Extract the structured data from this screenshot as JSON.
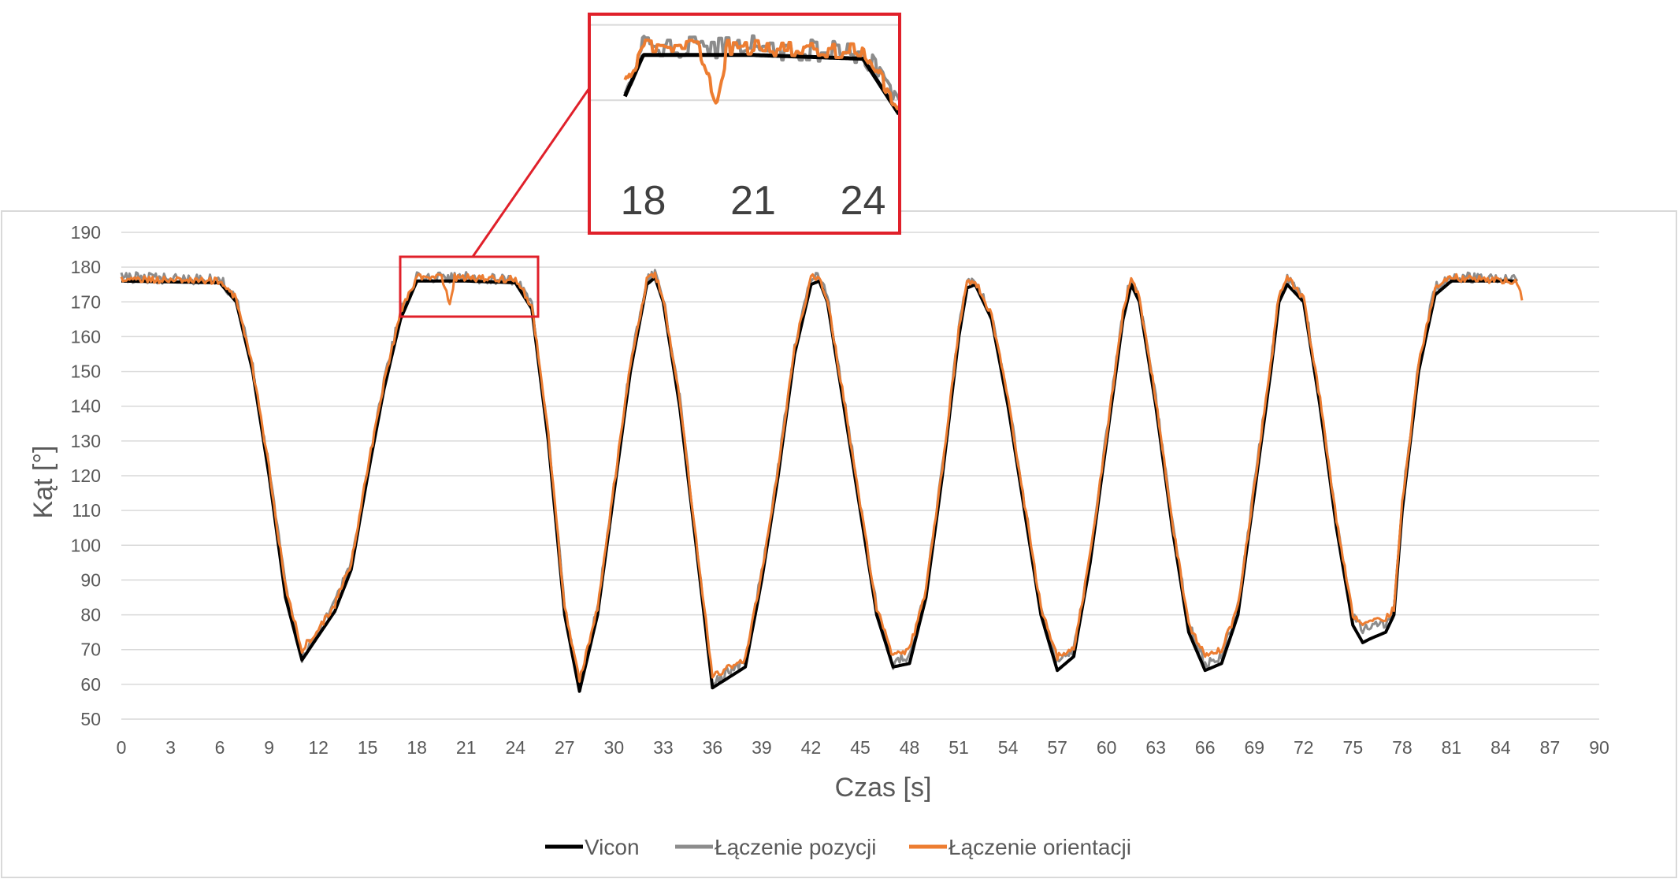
{
  "chart_data": {
    "type": "line",
    "title": "",
    "xlabel": "Czas [s]",
    "ylabel": "Kąt [°]",
    "xlim": [
      0,
      90
    ],
    "ylim": [
      50,
      190
    ],
    "x_ticks": [
      "0",
      "3",
      "6",
      "9",
      "12",
      "15",
      "18",
      "21",
      "24",
      "27",
      "30",
      "33",
      "36",
      "39",
      "42",
      "45",
      "48",
      "51",
      "54",
      "57",
      "60",
      "63",
      "66",
      "69",
      "72",
      "75",
      "78",
      "81",
      "84",
      "87",
      "90"
    ],
    "y_ticks": [
      "50",
      "60",
      "70",
      "80",
      "90",
      "100",
      "110",
      "120",
      "130",
      "140",
      "150",
      "160",
      "170",
      "180",
      "190"
    ],
    "grid": "horizontal",
    "legend_position": "bottom",
    "series": [
      {
        "name": "Vicon",
        "color": "#000000",
        "points": [
          [
            0,
            176
          ],
          [
            6,
            175.5
          ],
          [
            7,
            170
          ],
          [
            8,
            150
          ],
          [
            9,
            120
          ],
          [
            10,
            85
          ],
          [
            11,
            67
          ],
          [
            12,
            74
          ],
          [
            13,
            81
          ],
          [
            14,
            93
          ],
          [
            15,
            120
          ],
          [
            16,
            145
          ],
          [
            17,
            165
          ],
          [
            18,
            176
          ],
          [
            21,
            176
          ],
          [
            24,
            175.5
          ],
          [
            25,
            168
          ],
          [
            26,
            130
          ],
          [
            27,
            80
          ],
          [
            27.9,
            58
          ],
          [
            29,
            80
          ],
          [
            30,
            115
          ],
          [
            31,
            150
          ],
          [
            32,
            175
          ],
          [
            32.5,
            177
          ],
          [
            33,
            170
          ],
          [
            34,
            140
          ],
          [
            35,
            100
          ],
          [
            36,
            59
          ],
          [
            37,
            62
          ],
          [
            38,
            65
          ],
          [
            39,
            90
          ],
          [
            40,
            120
          ],
          [
            41,
            155
          ],
          [
            42,
            175
          ],
          [
            42.5,
            176
          ],
          [
            43,
            170
          ],
          [
            44,
            140
          ],
          [
            45,
            110
          ],
          [
            46,
            80
          ],
          [
            47,
            65
          ],
          [
            48,
            66
          ],
          [
            49,
            85
          ],
          [
            50,
            120
          ],
          [
            51,
            160
          ],
          [
            51.5,
            174
          ],
          [
            52,
            175
          ],
          [
            53,
            165
          ],
          [
            54,
            140
          ],
          [
            55,
            110
          ],
          [
            56,
            80
          ],
          [
            57,
            64
          ],
          [
            58,
            68
          ],
          [
            59,
            95
          ],
          [
            60,
            130
          ],
          [
            61,
            165
          ],
          [
            61.5,
            175
          ],
          [
            62,
            170
          ],
          [
            63,
            140
          ],
          [
            64,
            105
          ],
          [
            65,
            75
          ],
          [
            66,
            64
          ],
          [
            67,
            66
          ],
          [
            68,
            80
          ],
          [
            69,
            115
          ],
          [
            70,
            150
          ],
          [
            70.5,
            170
          ],
          [
            71,
            175
          ],
          [
            72,
            170
          ],
          [
            73,
            140
          ],
          [
            74,
            105
          ],
          [
            75,
            77
          ],
          [
            75.6,
            72
          ],
          [
            76,
            73
          ],
          [
            77,
            75
          ],
          [
            77.5,
            80
          ],
          [
            78,
            110
          ],
          [
            79,
            150
          ],
          [
            80,
            172
          ],
          [
            81,
            176
          ],
          [
            85,
            176
          ]
        ]
      },
      {
        "name": "Łączenie pozycji",
        "color": "#8c8c8c",
        "points": [
          [
            0,
            177
          ],
          [
            6,
            176.5
          ],
          [
            7,
            171
          ],
          [
            8,
            151
          ],
          [
            9,
            122
          ],
          [
            10,
            88
          ],
          [
            11,
            68
          ],
          [
            12,
            75
          ],
          [
            13,
            83
          ],
          [
            14,
            95
          ],
          [
            15,
            122
          ],
          [
            16,
            147
          ],
          [
            17,
            167
          ],
          [
            18,
            177
          ],
          [
            21,
            177
          ],
          [
            24,
            176.5
          ],
          [
            25,
            169
          ],
          [
            26,
            132
          ],
          [
            27,
            82
          ],
          [
            27.9,
            59
          ],
          [
            29,
            82
          ],
          [
            30,
            117
          ],
          [
            31,
            152
          ],
          [
            32,
            176
          ],
          [
            32.5,
            178
          ],
          [
            33,
            171
          ],
          [
            34,
            142
          ],
          [
            35,
            102
          ],
          [
            36,
            60
          ],
          [
            37,
            64
          ],
          [
            38,
            67
          ],
          [
            39,
            92
          ],
          [
            40,
            122
          ],
          [
            41,
            157
          ],
          [
            42,
            177
          ],
          [
            42.5,
            177
          ],
          [
            43,
            171
          ],
          [
            44,
            142
          ],
          [
            45,
            112
          ],
          [
            46,
            82
          ],
          [
            47,
            66
          ],
          [
            48,
            68
          ],
          [
            49,
            87
          ],
          [
            50,
            122
          ],
          [
            51,
            162
          ],
          [
            51.5,
            176
          ],
          [
            52,
            176
          ],
          [
            53,
            166
          ],
          [
            54,
            142
          ],
          [
            55,
            112
          ],
          [
            56,
            82
          ],
          [
            57,
            66
          ],
          [
            58,
            70
          ],
          [
            59,
            97
          ],
          [
            60,
            132
          ],
          [
            61,
            167
          ],
          [
            61.5,
            177
          ],
          [
            62,
            171
          ],
          [
            63,
            142
          ],
          [
            64,
            107
          ],
          [
            65,
            77
          ],
          [
            66,
            66
          ],
          [
            67,
            68
          ],
          [
            68,
            82
          ],
          [
            69,
            117
          ],
          [
            70,
            152
          ],
          [
            70.5,
            172
          ],
          [
            71,
            177
          ],
          [
            72,
            171
          ],
          [
            73,
            142
          ],
          [
            74,
            107
          ],
          [
            75,
            79
          ],
          [
            75.6,
            76
          ],
          [
            76,
            77
          ],
          [
            77,
            78
          ],
          [
            77.5,
            82
          ],
          [
            78,
            112
          ],
          [
            79,
            152
          ],
          [
            80,
            174
          ],
          [
            81,
            177
          ],
          [
            85,
            177
          ]
        ]
      },
      {
        "name": "Łączenie orientacji",
        "color": "#ed7d31",
        "points": [
          [
            0,
            176.5
          ],
          [
            6,
            176
          ],
          [
            7,
            171
          ],
          [
            8,
            151
          ],
          [
            9,
            122
          ],
          [
            10,
            88
          ],
          [
            11,
            70
          ],
          [
            12,
            76
          ],
          [
            13,
            83
          ],
          [
            14,
            95
          ],
          [
            15,
            122
          ],
          [
            16,
            147
          ],
          [
            17,
            167
          ],
          [
            18,
            177
          ],
          [
            19.5,
            177
          ],
          [
            20,
            170
          ],
          [
            20.3,
            177
          ],
          [
            21,
            177
          ],
          [
            24,
            176.5
          ],
          [
            25,
            169
          ],
          [
            26,
            132
          ],
          [
            27,
            82
          ],
          [
            27.9,
            61
          ],
          [
            29,
            82
          ],
          [
            30,
            117
          ],
          [
            31,
            152
          ],
          [
            32,
            176
          ],
          [
            32.5,
            178
          ],
          [
            33,
            171
          ],
          [
            34,
            142
          ],
          [
            35,
            102
          ],
          [
            36,
            62
          ],
          [
            37,
            65
          ],
          [
            38,
            67
          ],
          [
            39,
            92
          ],
          [
            40,
            122
          ],
          [
            41,
            157
          ],
          [
            42,
            177
          ],
          [
            42.5,
            177
          ],
          [
            43,
            171
          ],
          [
            44,
            142
          ],
          [
            45,
            112
          ],
          [
            46,
            82
          ],
          [
            47,
            68
          ],
          [
            48,
            70
          ],
          [
            49,
            87
          ],
          [
            50,
            122
          ],
          [
            51,
            162
          ],
          [
            51.5,
            176
          ],
          [
            52,
            176
          ],
          [
            53,
            166
          ],
          [
            54,
            142
          ],
          [
            55,
            112
          ],
          [
            56,
            82
          ],
          [
            57,
            68
          ],
          [
            58,
            70
          ],
          [
            59,
            97
          ],
          [
            60,
            132
          ],
          [
            61,
            167
          ],
          [
            61.5,
            177
          ],
          [
            62,
            171
          ],
          [
            63,
            142
          ],
          [
            64,
            107
          ],
          [
            65,
            77
          ],
          [
            66,
            68
          ],
          [
            67,
            70
          ],
          [
            68,
            82
          ],
          [
            69,
            117
          ],
          [
            70,
            152
          ],
          [
            70.5,
            172
          ],
          [
            71,
            177
          ],
          [
            72,
            171
          ],
          [
            73,
            142
          ],
          [
            74,
            107
          ],
          [
            75,
            80
          ],
          [
            75.6,
            77
          ],
          [
            76,
            78
          ],
          [
            77,
            79
          ],
          [
            77.5,
            82
          ],
          [
            78,
            112
          ],
          [
            79,
            152
          ],
          [
            80,
            174
          ],
          [
            81,
            177
          ],
          [
            85,
            176
          ],
          [
            85.3,
            171
          ]
        ]
      }
    ],
    "inset": {
      "x_ticks": [
        "18",
        "21",
        "24"
      ],
      "zoom_xlim": [
        17,
        25
      ],
      "zoom_ylim": [
        165,
        181
      ]
    }
  }
}
